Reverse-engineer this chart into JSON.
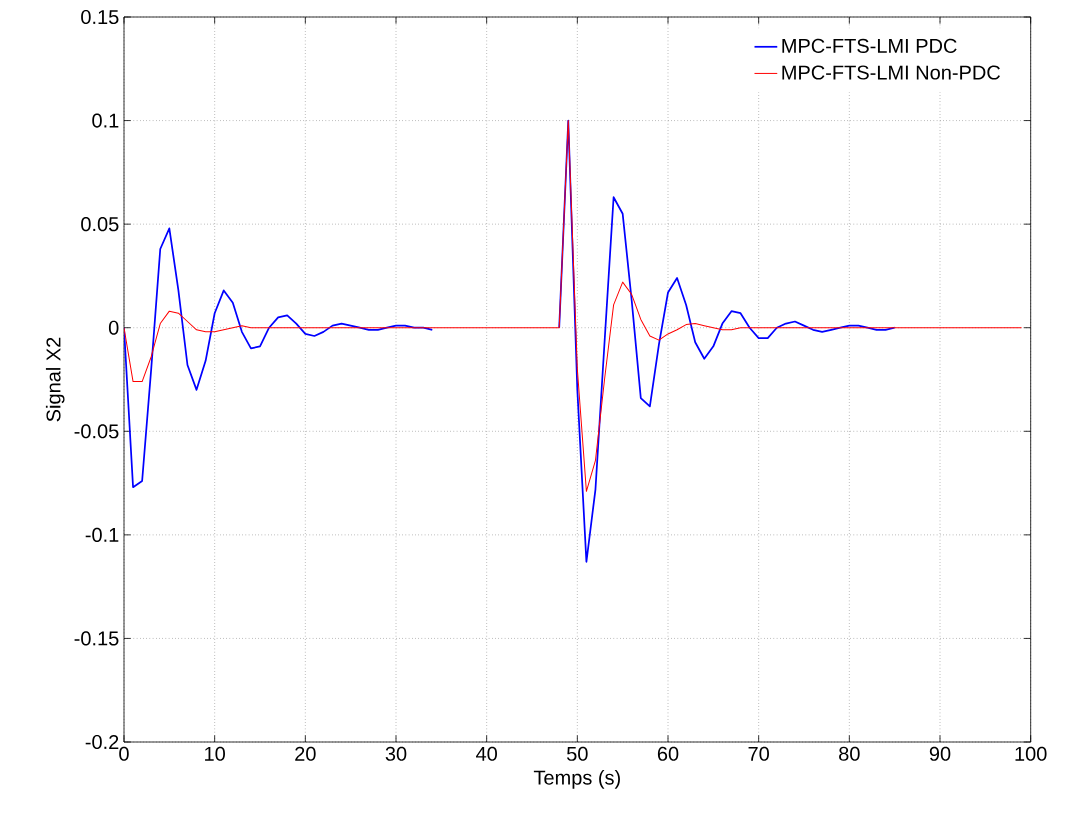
{
  "chart_data": {
    "type": "line",
    "xlabel": "Temps (s)",
    "ylabel": "Signal X2",
    "x": [
      0,
      1,
      2,
      3,
      4,
      5,
      6,
      7,
      8,
      9,
      10,
      11,
      12,
      13,
      14,
      15,
      16,
      17,
      18,
      19,
      20,
      21,
      22,
      23,
      24,
      25,
      26,
      27,
      28,
      29,
      30,
      31,
      32,
      33,
      34,
      35,
      36,
      37,
      38,
      39,
      40,
      41,
      42,
      43,
      44,
      45,
      46,
      47,
      48,
      49,
      50,
      51,
      52,
      53,
      54,
      55,
      56,
      57,
      58,
      59,
      60,
      61,
      62,
      63,
      64,
      65,
      66,
      67,
      68,
      69,
      70,
      71,
      72,
      73,
      74,
      75,
      76,
      77,
      78,
      79,
      80,
      81,
      82,
      83,
      84,
      85,
      86,
      87,
      88,
      89,
      90,
      91,
      92,
      93,
      94,
      95,
      96,
      97,
      98,
      99
    ],
    "series": [
      {
        "name": "MPC-FTS-LMI PDC",
        "color": "#0000ff",
        "values": [
          0,
          -0.077,
          -0.074,
          -0.02,
          0.038,
          0.048,
          0.018,
          -0.018,
          -0.03,
          -0.016,
          0.007,
          0.018,
          0.012,
          -0.002,
          -0.01,
          -0.009,
          0,
          0.005,
          0.006,
          0.002,
          -0.003,
          -0.004,
          -0.002,
          0.001,
          0.002,
          0.001,
          0,
          -0.001,
          -0.001,
          0,
          0.001,
          0.001,
          0,
          0,
          -0.001,
          null,
          null,
          null,
          null,
          null,
          null,
          null,
          null,
          null,
          null,
          null,
          null,
          null,
          0,
          0.1,
          -0.03,
          -0.113,
          -0.078,
          -0.007,
          0.063,
          0.055,
          0.013,
          -0.034,
          -0.038,
          -0.008,
          0.017,
          0.024,
          0.011,
          -0.007,
          -0.015,
          -0.009,
          0.002,
          0.008,
          0.007,
          0,
          -0.005,
          -0.005,
          0,
          0.002,
          0.003,
          0.001,
          -0.001,
          -0.002,
          -0.001,
          0,
          0.001,
          0.001,
          0,
          -0.001,
          -0.001,
          0,
          null,
          null,
          null,
          null,
          null,
          null,
          null,
          null,
          null,
          null,
          null,
          null,
          null,
          null
        ]
      },
      {
        "name": "MPC-FTS-LMI Non-PDC",
        "color": "#ff0000",
        "values": [
          0,
          -0.026,
          -0.026,
          -0.014,
          0.002,
          0.008,
          0.007,
          0.003,
          -0.001,
          -0.002,
          -0.002,
          -0.001,
          0,
          0.001,
          0,
          0,
          0,
          0,
          0,
          0,
          0,
          0,
          0,
          0,
          0,
          0,
          0,
          0,
          0,
          0,
          0,
          0,
          0,
          0,
          0,
          0,
          0,
          0,
          0,
          0,
          0,
          0,
          0,
          0,
          0,
          0,
          0,
          0,
          0,
          0.1,
          -0.02,
          -0.079,
          -0.064,
          -0.025,
          0.011,
          0.022,
          0.016,
          0.004,
          -0.004,
          -0.006,
          -0.003,
          -0.001,
          0.0015,
          0.002,
          0.001,
          0,
          -0.001,
          -0.001,
          0,
          0,
          0,
          0,
          0,
          0,
          0,
          0,
          0,
          0,
          0,
          0,
          0,
          0,
          0,
          0,
          0,
          0,
          0,
          0,
          0,
          0,
          0,
          0,
          0,
          0,
          0,
          0,
          0,
          0,
          0,
          0
        ]
      }
    ],
    "xlim": [
      0,
      100
    ],
    "ylim": [
      -0.2,
      0.15
    ],
    "xticks": [
      0,
      10,
      20,
      30,
      40,
      50,
      60,
      70,
      80,
      90,
      100
    ],
    "yticks": [
      -0.2,
      -0.15,
      -0.1,
      -0.05,
      0,
      0.05,
      0.1,
      0.15
    ],
    "grid": true,
    "legend": "top right",
    "marker": "none",
    "line_style": "solid"
  }
}
